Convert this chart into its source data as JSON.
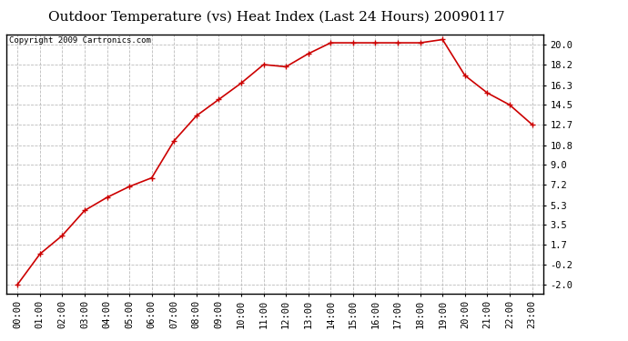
{
  "title": "Outdoor Temperature (vs) Heat Index (Last 24 Hours) 20090117",
  "copyright": "Copyright 2009 Cartronics.com",
  "hours": [
    "00:00",
    "01:00",
    "02:00",
    "03:00",
    "04:00",
    "05:00",
    "06:00",
    "07:00",
    "08:00",
    "09:00",
    "10:00",
    "11:00",
    "12:00",
    "13:00",
    "14:00",
    "15:00",
    "16:00",
    "17:00",
    "18:00",
    "19:00",
    "20:00",
    "21:00",
    "22:00",
    "23:00"
  ],
  "values": [
    -2.0,
    0.8,
    2.5,
    4.8,
    6.0,
    7.0,
    7.8,
    11.2,
    13.5,
    15.0,
    16.5,
    18.2,
    18.0,
    19.2,
    20.2,
    20.2,
    20.2,
    20.2,
    20.2,
    20.5,
    17.2,
    15.6,
    14.5,
    12.7
  ],
  "line_color": "#cc0000",
  "marker": "+",
  "marker_color": "#cc0000",
  "marker_size": 5,
  "line_width": 1.2,
  "yticks": [
    -2.0,
    -0.2,
    1.7,
    3.5,
    5.3,
    7.2,
    9.0,
    10.8,
    12.7,
    14.5,
    16.3,
    18.2,
    20.0
  ],
  "ylim": [
    -2.8,
    21.0
  ],
  "background_color": "#ffffff",
  "plot_bg_color": "#ffffff",
  "grid_color": "#bbbbbb",
  "grid_style": "--",
  "title_fontsize": 11,
  "copyright_fontsize": 6.5,
  "tick_fontsize": 7.5
}
